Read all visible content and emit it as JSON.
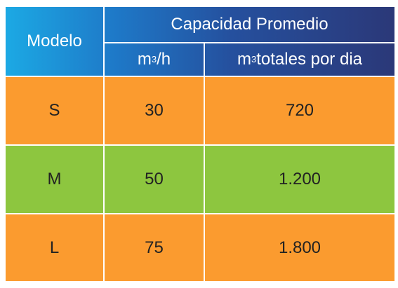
{
  "table": {
    "header": {
      "model_label": "Modelo",
      "group_label": "Capacidad Promedio",
      "col_hourly_unit_base": "m",
      "col_hourly_unit_exp": "3",
      "col_hourly_unit_rest": "/h",
      "col_daily_unit_base": "m",
      "col_daily_unit_exp": "3",
      "col_daily_unit_rest": " totales por dia"
    },
    "rows": [
      {
        "model": "S",
        "hourly": "30",
        "daily": "720",
        "color": "#fb9b2f"
      },
      {
        "model": "M",
        "hourly": "50",
        "daily": "1.200",
        "color": "#8dc63f"
      },
      {
        "model": "L",
        "hourly": "75",
        "daily": "1.800",
        "color": "#fb9b2f"
      }
    ]
  }
}
